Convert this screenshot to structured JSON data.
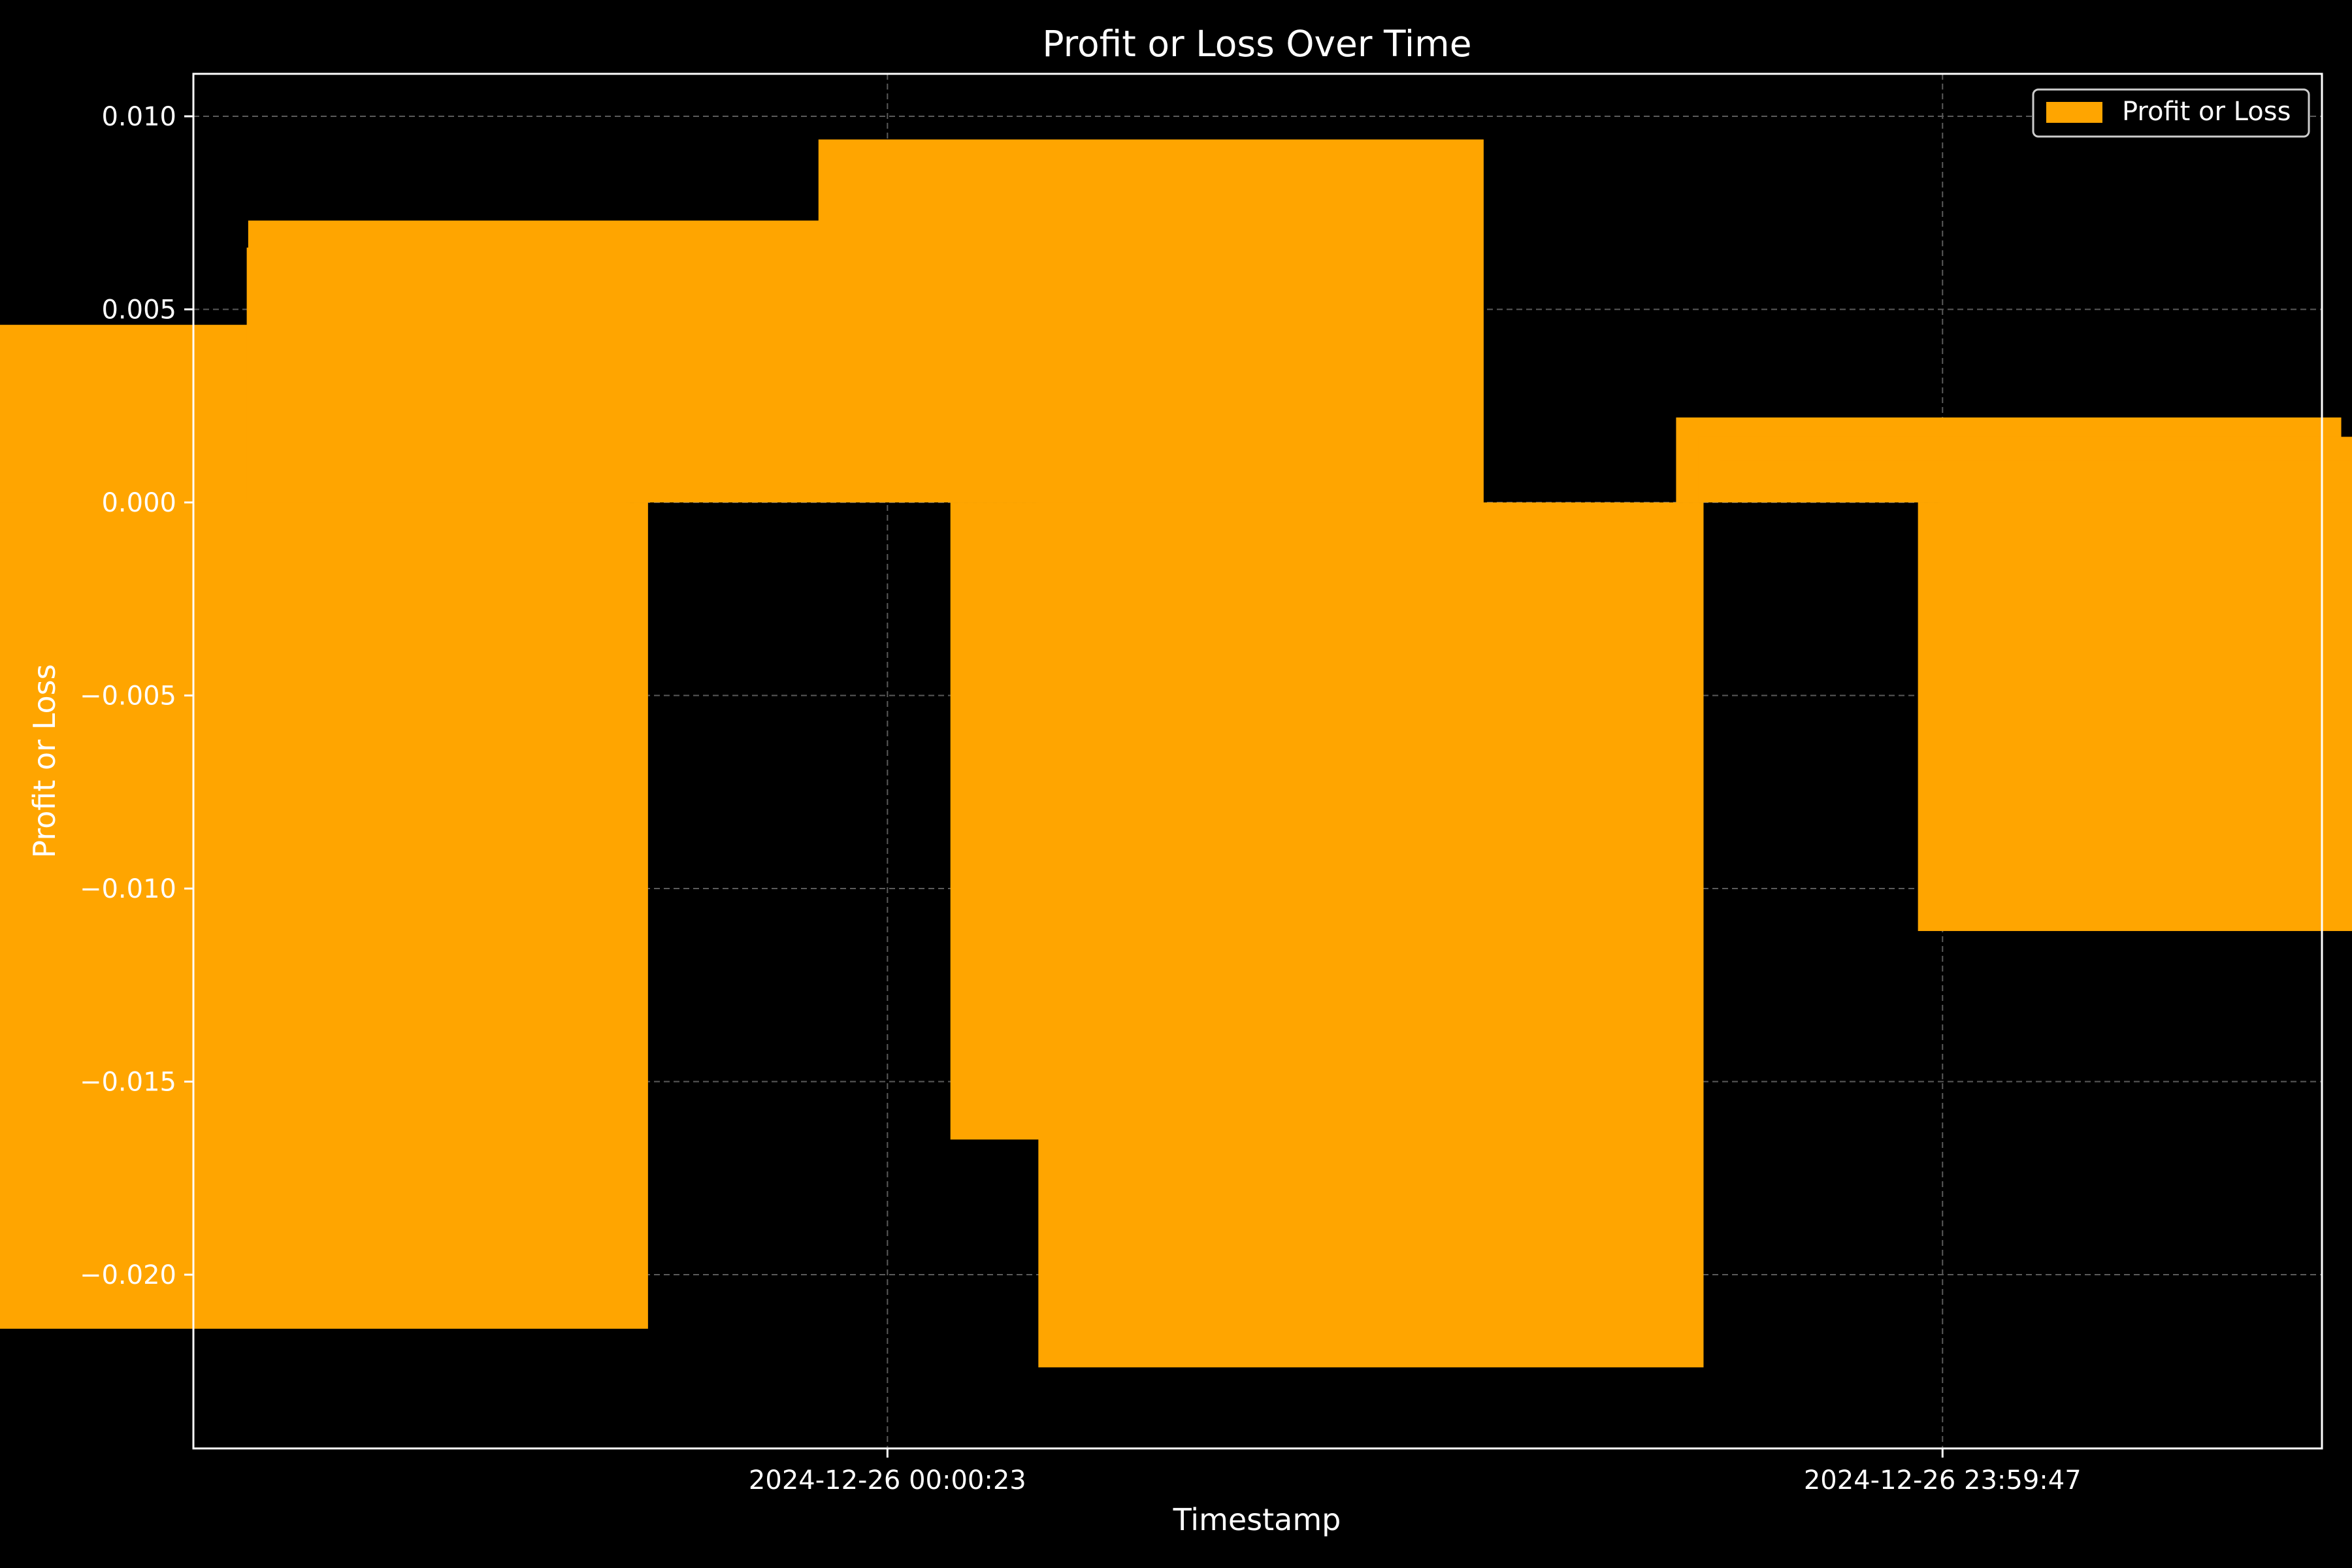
{
  "chart_data": {
    "type": "bar",
    "title": "Profit or Loss Over Time",
    "xlabel": "Timestamp",
    "ylabel": "Profit or Loss",
    "legend": {
      "position": "top-right",
      "entries": [
        {
          "label": "Profit or Loss",
          "color": "#ffa500"
        }
      ]
    },
    "grid": true,
    "ylim": [
      -0.0245,
      0.0111
    ],
    "yticks": [
      {
        "value": 0.01,
        "label": "0.010"
      },
      {
        "value": 0.005,
        "label": "0.005"
      },
      {
        "value": 0.0,
        "label": "0.000"
      },
      {
        "value": -0.005,
        "label": "−0.005"
      },
      {
        "value": -0.01,
        "label": "−0.010"
      },
      {
        "value": -0.015,
        "label": "−0.015"
      },
      {
        "value": -0.02,
        "label": "−0.020"
      }
    ],
    "xlim": [
      "2024-12-25 08:13:30",
      "2024-12-27 08:37:24"
    ],
    "xticks": [
      {
        "value": "2024-12-26 00:00:23",
        "label": "2024-12-26 00:00:23"
      },
      {
        "value": "2024-12-26 23:59:47",
        "label": "2024-12-26 23:59:47"
      }
    ],
    "series": [
      {
        "name": "Profit or Loss",
        "color": "#ffa500",
        "bars": [
          {
            "x": "2024-12-25 10:00:00",
            "value": -0.0106
          },
          {
            "x": "2024-12-25 10:05:00",
            "value": 0.0013
          },
          {
            "x": "2024-12-25 10:15:00",
            "value": 0.0046
          },
          {
            "x": "2024-12-25 10:30:00",
            "value": -0.0142
          },
          {
            "x": "2024-12-25 11:00:00",
            "value": -0.0214
          },
          {
            "x": "2024-12-25 17:00:00",
            "value": 0.0066
          },
          {
            "x": "2024-12-25 17:02:00",
            "value": 0.0073
          },
          {
            "x": "2024-12-26 06:00:00",
            "value": 0.0094
          },
          {
            "x": "2024-12-26 09:00:00",
            "value": -0.0165
          },
          {
            "x": "2024-12-26 11:00:00",
            "value": -0.0224
          },
          {
            "x": "2024-12-27 01:30:00",
            "value": 0.0022
          },
          {
            "x": "2024-12-27 02:00:00",
            "value": 0.0017
          },
          {
            "x": "2024-12-27 02:30:00",
            "value": 0.0011
          },
          {
            "x": "2024-12-27 07:00:00",
            "value": -0.0111
          },
          {
            "x": "2024-12-27 07:30:00",
            "value": -0.0103
          },
          {
            "x": "2024-12-27 08:00:00",
            "value": -0.0094
          }
        ]
      }
    ]
  }
}
